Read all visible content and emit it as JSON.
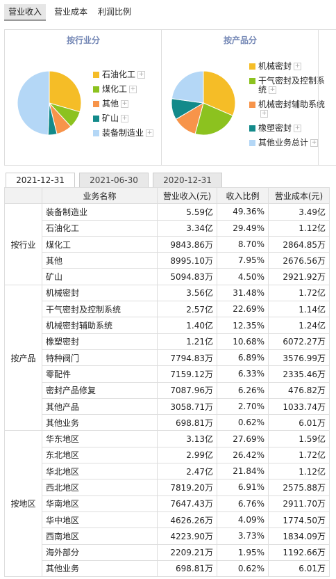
{
  "tabs": [
    "营业收入",
    "营业成本",
    "利润比例"
  ],
  "pies": [
    {
      "title": "按行业分",
      "slices": [
        {
          "label": "石油化工",
          "value": 29.49,
          "color": "#f5bd27"
        },
        {
          "label": "煤化工",
          "value": 8.7,
          "color": "#8cc21f"
        },
        {
          "label": "其他",
          "value": 7.95,
          "color": "#f7944a"
        },
        {
          "label": "矿山",
          "value": 4.5,
          "color": "#138a8a"
        },
        {
          "label": "装备制造业",
          "value": 49.36,
          "color": "#b4d7f6"
        }
      ]
    },
    {
      "title": "按产品分",
      "slices": [
        {
          "label": "机械密封",
          "value": 31.48,
          "color": "#f5bd27"
        },
        {
          "label": "干气密封及控制系统",
          "value": 22.69,
          "color": "#8cc21f"
        },
        {
          "label": "机械密封辅助系统",
          "value": 12.35,
          "color": "#f7944a"
        },
        {
          "label": "橡塑密封",
          "value": 10.68,
          "color": "#138a8a"
        },
        {
          "label": "其他业务总计",
          "value": 22.8,
          "color": "#b4d7f6"
        }
      ]
    }
  ],
  "date_tabs": [
    "2021-12-31",
    "2021-06-30",
    "2020-12-31"
  ],
  "table": {
    "headers": [
      "业务名称",
      "营业收入(元)",
      "收入比例",
      "营业成本(元)"
    ],
    "groups": [
      {
        "label": "按行业",
        "rows": [
          [
            "装备制造业",
            "5.59亿",
            "49.36%",
            "3.49亿"
          ],
          [
            "石油化工",
            "3.34亿",
            "29.49%",
            "1.12亿"
          ],
          [
            "煤化工",
            "9843.86万",
            "8.70%",
            "2864.85万"
          ],
          [
            "其他",
            "8995.10万",
            "7.95%",
            "2676.56万"
          ],
          [
            "矿山",
            "5094.83万",
            "4.50%",
            "2921.92万"
          ]
        ]
      },
      {
        "label": "按产品",
        "rows": [
          [
            "机械密封",
            "3.56亿",
            "31.48%",
            "1.72亿"
          ],
          [
            "干气密封及控制系统",
            "2.57亿",
            "22.69%",
            "1.14亿"
          ],
          [
            "机械密封辅助系统",
            "1.40亿",
            "12.35%",
            "1.24亿"
          ],
          [
            "橡塑密封",
            "1.21亿",
            "10.68%",
            "6072.27万"
          ],
          [
            "特种阀门",
            "7794.83万",
            "6.89%",
            "3576.99万"
          ],
          [
            "零配件",
            "7159.12万",
            "6.33%",
            "2335.46万"
          ],
          [
            "密封产品修复",
            "7087.96万",
            "6.26%",
            "476.82万"
          ],
          [
            "其他产品",
            "3058.71万",
            "2.70%",
            "1033.74万"
          ],
          [
            "其他业务",
            "698.81万",
            "0.62%",
            "6.01万"
          ]
        ]
      },
      {
        "label": "按地区",
        "rows": [
          [
            "华东地区",
            "3.13亿",
            "27.69%",
            "1.59亿"
          ],
          [
            "东北地区",
            "2.99亿",
            "26.42%",
            "1.72亿"
          ],
          [
            "华北地区",
            "2.47亿",
            "21.84%",
            "1.12亿"
          ],
          [
            "西北地区",
            "7819.20万",
            "6.91%",
            "2575.88万"
          ],
          [
            "华南地区",
            "7647.43万",
            "6.76%",
            "2911.70万"
          ],
          [
            "华中地区",
            "4626.26万",
            "4.09%",
            "1774.50万"
          ],
          [
            "西南地区",
            "4223.90万",
            "3.73%",
            "1834.09万"
          ],
          [
            "海外部分",
            "2209.21万",
            "1.95%",
            "1192.66万"
          ],
          [
            "其他业务",
            "698.81万",
            "0.62%",
            "6.01万"
          ]
        ]
      }
    ]
  }
}
